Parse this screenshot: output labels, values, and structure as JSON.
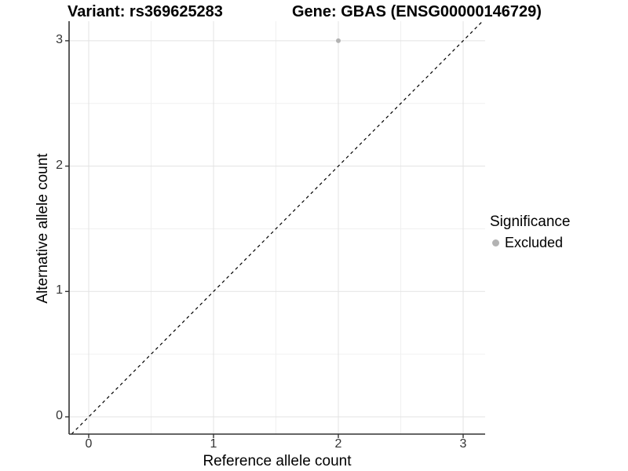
{
  "chart_data": {
    "type": "scatter",
    "title_left": "Variant: rs369625283",
    "title_right": "Gene: GBAS (ENSG00000146729)",
    "xlabel": "Reference allele count",
    "ylabel": "Alternative allele count",
    "x_ticks": [
      "0",
      "1",
      "2",
      "3"
    ],
    "y_ticks": [
      "0",
      "1",
      "2",
      "3"
    ],
    "xlim": [
      -0.16,
      3.19
    ],
    "ylim": [
      -0.14,
      3.16
    ],
    "grid": {
      "major": true,
      "minor": true,
      "minor_interval": 0.5
    },
    "points": [
      {
        "x": 2,
        "y": 3,
        "series": "Excluded",
        "color": "#b3b3b3",
        "radius": 3
      }
    ],
    "reference_line": {
      "slope": 1,
      "intercept": 0,
      "style": "dashed",
      "color": "#000000",
      "label": "identity"
    },
    "legend": {
      "title": "Significance",
      "position": "right",
      "entries": [
        {
          "label": "Excluded",
          "color": "#b3b3b3"
        }
      ]
    }
  },
  "colors": {
    "background": "#ffffff",
    "grid_major": "#e3e3e3",
    "grid_minor": "#f0f0f0",
    "axis_line": "#333333",
    "tick_mark": "#333333",
    "tick_text": "#333333",
    "title_text": "#000000"
  }
}
